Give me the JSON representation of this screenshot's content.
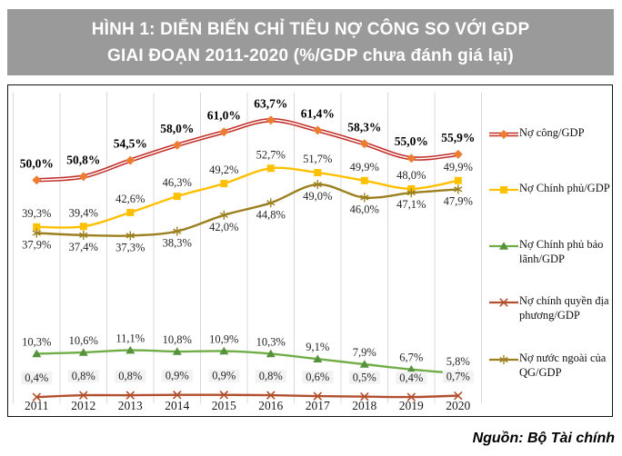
{
  "title": {
    "line1": "HÌNH 1: DIỄN BIẾN CHỈ TIÊU NỢ CÔNG SO VỚI GDP",
    "line2": "GIAI ĐOẠN 2011-2020 (%/GDP chưa đánh giá lại)"
  },
  "source": "Nguồn: Bộ Tài chính",
  "colors": {
    "title_bg": "#9A9A9A",
    "title_text": "#FFFFFF",
    "chart_border": "#111111",
    "gridline": "#D9D9D9",
    "data_label": "#262626",
    "axis_label": "#1A1A1A"
  },
  "chart_data": {
    "type": "line",
    "categories": [
      "2011",
      "2012",
      "2013",
      "2014",
      "2015",
      "2016",
      "2017",
      "2018",
      "2019",
      "2020"
    ],
    "xlabel": "",
    "ylabel": "",
    "ylim": [
      0,
      70
    ],
    "grid": "vertical-only",
    "legend_position": "right",
    "series": [
      {
        "name": "Nợ công/GDP",
        "values": [
          50.0,
          50.8,
          54.5,
          58.0,
          61.0,
          63.7,
          61.4,
          58.3,
          55.0,
          55.9
        ],
        "labels": [
          "50,0%",
          "50,8%",
          "54,5%",
          "58,0%",
          "61,0%",
          "63,7%",
          "61,4%",
          "58,3%",
          "55,0%",
          "55,9%"
        ],
        "color": "#C2302A",
        "marker": "diamond",
        "marker_color": "#ED7D31",
        "line_style": "double",
        "label_position": "above",
        "label_weight": "bold"
      },
      {
        "name": "Nợ Chính phủ/GDP",
        "values": [
          39.3,
          39.4,
          42.6,
          46.3,
          49.2,
          52.7,
          51.7,
          49.9,
          48.0,
          49.9
        ],
        "labels": [
          "39,3%",
          "39,4%",
          "42,6%",
          "46,3%",
          "49,2%",
          "52,7%",
          "51,7%",
          "49,9%",
          "48,0%",
          "49,9%"
        ],
        "color": "#FFC000",
        "marker": "square",
        "marker_color": "#FFC000",
        "line_style": "solid",
        "label_position": "above",
        "label_weight": "normal"
      },
      {
        "name": "Nợ Chính phủ bảo lãnh/GDP",
        "values": [
          10.3,
          10.6,
          11.1,
          10.8,
          10.9,
          10.3,
          9.1,
          7.9,
          6.7,
          5.8
        ],
        "labels": [
          "10,3%",
          "10,6%",
          "11,1%",
          "10,8%",
          "10,9%",
          "10,3%",
          "9,1%",
          "7,9%",
          "6,7%",
          "5,8%"
        ],
        "color": "#71AD47",
        "marker": "triangle",
        "marker_color": "#55923B",
        "line_style": "solid",
        "label_position": "above",
        "label_weight": "normal"
      },
      {
        "name": "Nợ chính quyền địa phương/GDP",
        "values": [
          0.4,
          0.8,
          0.8,
          0.9,
          0.9,
          0.8,
          0.6,
          0.5,
          0.4,
          0.7
        ],
        "labels": [
          "0,4%",
          "0,8%",
          "0,8%",
          "0,9%",
          "0,9%",
          "0,8%",
          "0,6%",
          "0,5%",
          "0,4%",
          "0,7%"
        ],
        "color": "#B14F2E",
        "marker": "cross",
        "marker_color": "#B14F2E",
        "line_style": "solid",
        "label_position": "above",
        "label_weight": "normal",
        "label_bg": "#F2F2F2"
      },
      {
        "name": "Nợ nước ngoài của QG/GDP",
        "values": [
          37.9,
          37.4,
          37.3,
          38.3,
          42.0,
          44.8,
          49.0,
          46.0,
          47.1,
          47.9
        ],
        "labels": [
          "37,9%",
          "37,4%",
          "37,3%",
          "38,3%",
          "42,0%",
          "44,8%",
          "49,0%",
          "46,0%",
          "47,1%",
          "47,9%"
        ],
        "color": "#9C8020",
        "marker": "asterisk",
        "marker_color": "#9C8020",
        "line_style": "solid",
        "label_position": "below",
        "label_weight": "normal"
      }
    ]
  }
}
